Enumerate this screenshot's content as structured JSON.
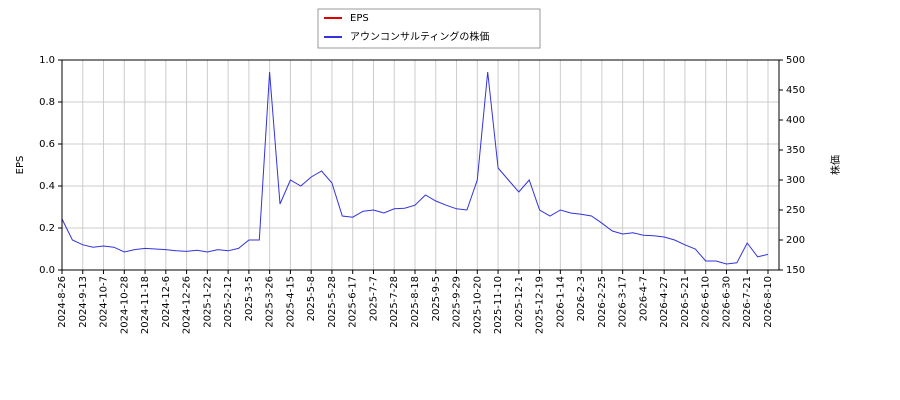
{
  "chart_data": {
    "type": "line",
    "y_label": "EPS",
    "y2_label": "株価",
    "categories": [
      "2024-8-26",
      null,
      "2024-9-13",
      null,
      "2024-10-7",
      null,
      "2024-10-28",
      null,
      "2024-11-18",
      null,
      "2024-12-6",
      null,
      "2024-12-26",
      null,
      "2025-1-22",
      null,
      "2025-2-12",
      null,
      "2025-3-5",
      null,
      "2025-3-26",
      null,
      "2025-4-15",
      null,
      "2025-5-8",
      null,
      "2025-5-28",
      null,
      "2025-6-17",
      null,
      "2025-7-7",
      null,
      "2025-7-28",
      null,
      "2025-8-18",
      null,
      "2025-9-5",
      null,
      "2025-9-29",
      null,
      "2025-10-20",
      null,
      "2025-11-10",
      null,
      "2025-12-1",
      null,
      "2025-12-19",
      null,
      "2026-1-14",
      null,
      "2026-2-3",
      null,
      "2026-2-25",
      null,
      "2026-3-17",
      null,
      "2026-4-7",
      null,
      "2026-4-27",
      null,
      "2026-5-21",
      null,
      "2026-6-10",
      null,
      "2026-6-30",
      null,
      "2026-7-21",
      null,
      "2026-8-10"
    ],
    "series": [
      {
        "name": "EPS",
        "color": "#e00000",
        "values": [
          null,
          null,
          null,
          null,
          null,
          null,
          null,
          null,
          null,
          null,
          null,
          null,
          null,
          null,
          null,
          null,
          null,
          null,
          null,
          null,
          null,
          null,
          null,
          null,
          null,
          null,
          null,
          null,
          null,
          null,
          null,
          null,
          null,
          null,
          null,
          null,
          null,
          null,
          null,
          null,
          null,
          null,
          null,
          null,
          null,
          null,
          null,
          null,
          null,
          null,
          null,
          null,
          null,
          null,
          null,
          null,
          null,
          null,
          null,
          null,
          null,
          null,
          null,
          null,
          null,
          null,
          null,
          null,
          null
        ]
      },
      {
        "name": "アウンコンサルティングの株価",
        "color": "#3333dd",
        "axis": "y2",
        "values": [
          235,
          200,
          192,
          188,
          190,
          188,
          180,
          184,
          186,
          185,
          184,
          182,
          181,
          183,
          180,
          184,
          182,
          186,
          200,
          200,
          480,
          260,
          300,
          290,
          305,
          315,
          295,
          240,
          238,
          248,
          250,
          245,
          252,
          253,
          258,
          275,
          265,
          258,
          252,
          250,
          300,
          480,
          320,
          300,
          280,
          300,
          250,
          240,
          250,
          245,
          243,
          240,
          228,
          215,
          210,
          212,
          208,
          207,
          205,
          200,
          192,
          185,
          165,
          165,
          160,
          162,
          195,
          172,
          176
        ]
      }
    ],
    "ylim": [
      0,
      1
    ],
    "yticks": [
      {
        "value": 0,
        "label": "0.0"
      },
      0.2,
      0.4,
      0.6,
      0.8,
      {
        "value": 1,
        "label": "1.0"
      }
    ],
    "y2lim": [
      150,
      500
    ],
    "y2ticks": [
      150,
      200,
      250,
      300,
      350,
      400,
      450,
      500
    ],
    "grid": true
  }
}
